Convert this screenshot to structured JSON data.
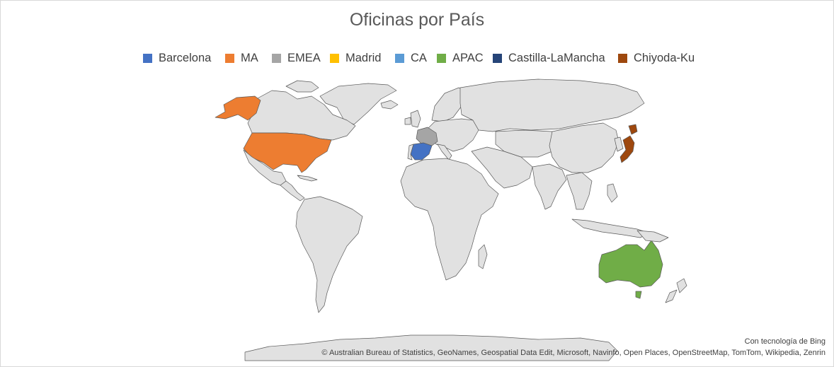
{
  "chart_data": {
    "type": "map",
    "title": "Oficinas por País",
    "legend_position": "top",
    "series": [
      {
        "name": "Barcelona",
        "color": "#4472C4",
        "regions": [
          "Spain"
        ]
      },
      {
        "name": "MA",
        "color": "#ED7D31",
        "regions": [
          "United States"
        ]
      },
      {
        "name": "EMEA",
        "color": "#A5A5A5",
        "regions": [
          "France"
        ]
      },
      {
        "name": "Madrid",
        "color": "#FFC000",
        "regions": []
      },
      {
        "name": "CA",
        "color": "#5B9BD5",
        "regions": []
      },
      {
        "name": "APAC",
        "color": "#70AD47",
        "regions": [
          "Australia"
        ]
      },
      {
        "name": "Castilla-LaMancha",
        "color": "#264478",
        "regions": []
      },
      {
        "name": "Chiyoda-Ku",
        "color": "#9E480E",
        "regions": [
          "Japan"
        ]
      }
    ],
    "base_land_color": "#E1E1E1",
    "border_color": "#595959"
  },
  "attribution": {
    "powered_by": "Con tecnología de Bing",
    "sources": "© Australian Bureau of Statistics, GeoNames, Geospatial Data Edit, Microsoft, Navinfo, Open Places, OpenStreetMap, TomTom, Wikipedia, Zenrin"
  }
}
